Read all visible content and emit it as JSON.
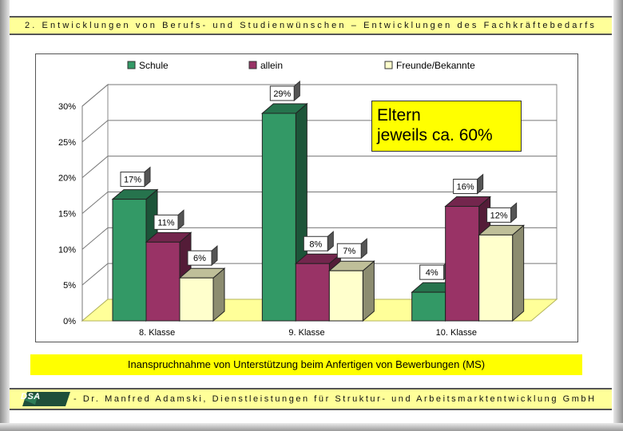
{
  "header": {
    "title": "2. Entwicklungen von Berufs- und Studienwünschen – Entwicklungen des Fachkräftebedarfs"
  },
  "caption": "Inanspruchnahme von Unterstützung beim Anfertigen von Bewerbungen (MS)",
  "footer": {
    "logo_text": "DSA",
    "text": "- Dr. Manfred Adamski, Dienstleistungen für Struktur- und Arbeitsmarktentwicklung GmbH"
  },
  "annotation": {
    "line1": "Eltern",
    "line2": "jeweils ca. 60%"
  },
  "chart_data": {
    "type": "bar",
    "categories": [
      "8. Klasse",
      "9. Klasse",
      "10. Klasse"
    ],
    "series": [
      {
        "name": "Schule",
        "values": [
          17,
          29,
          4
        ],
        "labels": [
          "17%",
          "29%",
          "4%"
        ],
        "color": "#339966"
      },
      {
        "name": "allein",
        "values": [
          11,
          8,
          16
        ],
        "labels": [
          "11%",
          "8%",
          "16%"
        ],
        "color": "#993366"
      },
      {
        "name": "Freunde/Bekannte",
        "values": [
          6,
          7,
          12
        ],
        "labels": [
          "6%",
          "7%",
          "12%"
        ],
        "color": "#ffffcc"
      }
    ],
    "yticks": [
      "0%",
      "5%",
      "10%",
      "15%",
      "20%",
      "25%",
      "30%"
    ],
    "ylim": [
      0,
      30
    ],
    "legend_position": "top",
    "floor_color": "#ffff99"
  }
}
